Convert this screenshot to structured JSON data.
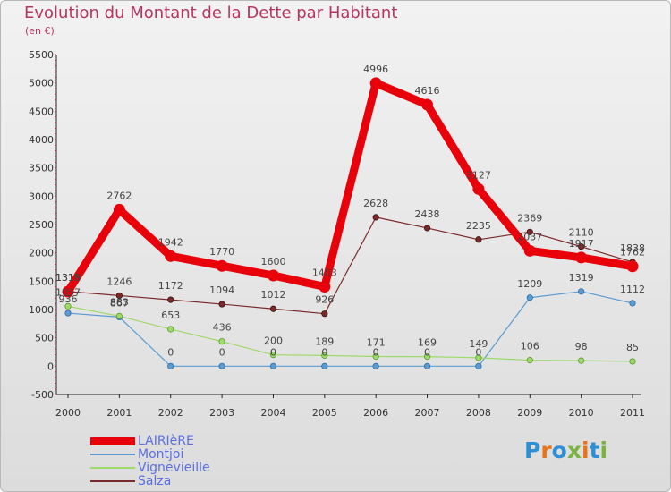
{
  "title": "Evolution du Montant de la Dette par Habitant",
  "unit": "(en €)",
  "logo": {
    "text": "Proxiti",
    "colors": [
      "#2d8fd5",
      "#e8731a",
      "#2d8fd5",
      "#7ab33e",
      "#e8731a",
      "#2d8fd5",
      "#7ab33e"
    ]
  },
  "chart_data": {
    "type": "line",
    "title": "Evolution du Montant de la Dette par Habitant",
    "ylabel": "(en €)",
    "x": [
      "2000",
      "2001",
      "2002",
      "2003",
      "2004",
      "2005",
      "2006",
      "2007",
      "2008",
      "2009",
      "2010",
      "2011"
    ],
    "ylim": [
      -500,
      5500
    ],
    "yticks": [
      -500,
      0,
      500,
      1000,
      1500,
      2000,
      2500,
      3000,
      3500,
      4000,
      4500,
      5000,
      5500
    ],
    "grid": false,
    "legend_position": "bottom-left",
    "series": [
      {
        "name": "LAIRIèRE",
        "color": "#e8000b",
        "values": [
          1316,
          2762,
          1942,
          1770,
          1600,
          1403,
          4996,
          4616,
          3127,
          2037,
          1917,
          1762
        ]
      },
      {
        "name": "Montjoi",
        "color": "#5b9bd0",
        "values": [
          936,
          867,
          0,
          0,
          0,
          0,
          0,
          0,
          0,
          1209,
          1319,
          1112
        ]
      },
      {
        "name": "Vignevieille",
        "color": "#9ed96b",
        "values": [
          1057,
          883,
          653,
          436,
          200,
          189,
          171,
          169,
          149,
          106,
          98,
          85
        ]
      },
      {
        "name": "Salza",
        "color": "#7a2a2a",
        "values": [
          1319,
          1246,
          1172,
          1094,
          1012,
          926,
          2628,
          2438,
          2235,
          2369,
          2110,
          1838
        ]
      }
    ]
  }
}
